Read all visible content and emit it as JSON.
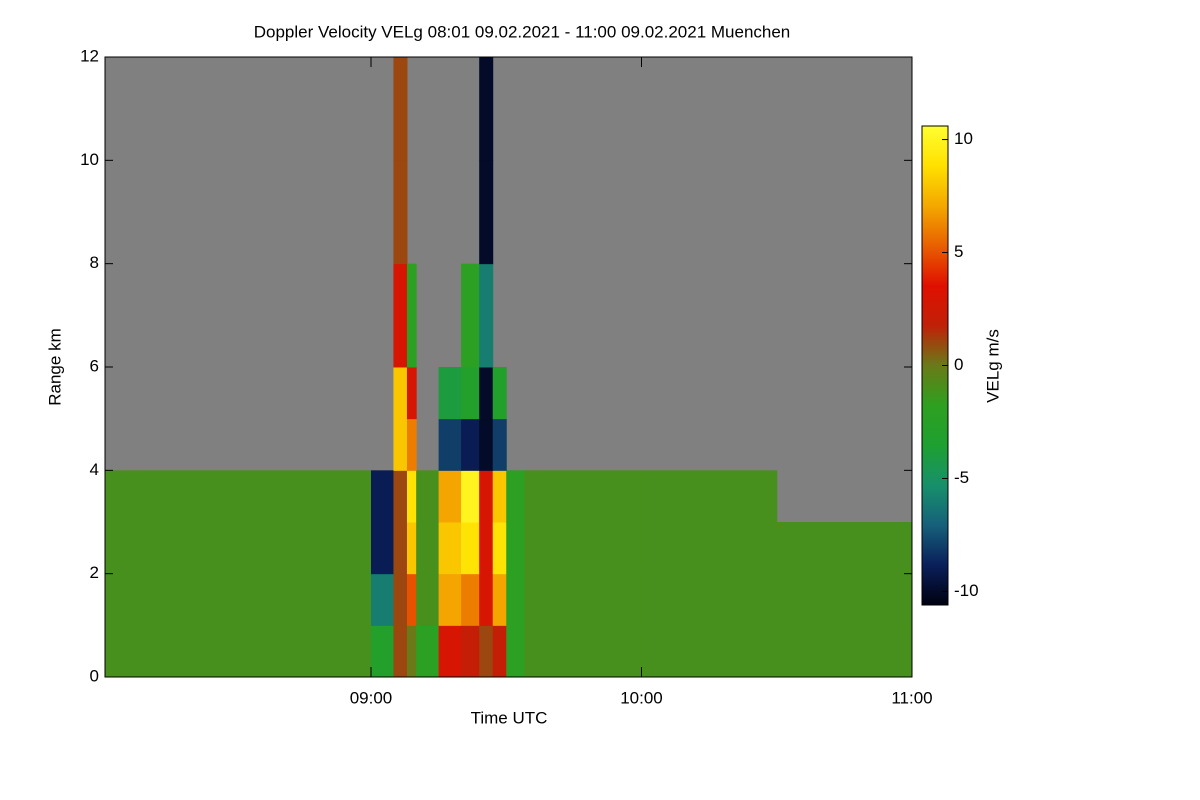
{
  "chart_data": {
    "type": "heatmap",
    "title": "Doppler Velocity VELg   08:01 09.02.2021 - 11:00 09.02.2021 Muenchen",
    "x_label": "Time UTC",
    "y_label": "Range km",
    "colorbar_label": "VELg m/s",
    "xlim": [
      8.0167,
      11.0
    ],
    "xticks": [
      {
        "value": 9,
        "label": "09:00"
      },
      {
        "value": 10,
        "label": "10:00"
      },
      {
        "value": 11,
        "label": "11:00"
      }
    ],
    "ylim": [
      0,
      12
    ],
    "yticks": [
      0,
      2,
      4,
      6,
      8,
      10,
      12
    ],
    "zlim": [
      -10.6,
      10.6
    ],
    "zticks": [
      -10,
      -5,
      0,
      5,
      10
    ],
    "colors": [
      "#000010",
      "#0a1f5a",
      "#16607a",
      "#17906a",
      "#1ea030",
      "#2ea020",
      "#6a7a18",
      "#c02008",
      "#e01000",
      "#e86000",
      "#f4a800",
      "#ffe000",
      "#ffff30"
    ],
    "missing_color": "#808080",
    "x_bins": [
      8.0167,
      8.5,
      8.833,
      9.0,
      9.083,
      9.133,
      9.167,
      9.25,
      9.333,
      9.4,
      9.45,
      9.5,
      9.567,
      10.0,
      10.5,
      11.0
    ],
    "y_bins": [
      0,
      1,
      2,
      3,
      4,
      5,
      6,
      8,
      10,
      12
    ],
    "values": [
      [
        -1,
        -1,
        -1,
        -3,
        1,
        0,
        -2,
        3,
        2,
        1,
        2,
        -2,
        -1,
        -1,
        -1
      ],
      [
        -1,
        -1,
        -1,
        -6,
        1,
        5,
        -1,
        7,
        6,
        3,
        7,
        -2,
        -1,
        -1,
        -1
      ],
      [
        -1,
        -1,
        -1,
        -9,
        1,
        8,
        -1,
        8,
        9,
        3,
        9,
        -2,
        -1,
        -1,
        -1
      ],
      [
        -1,
        -1,
        -1,
        -9,
        1,
        9,
        -1,
        7,
        10,
        3,
        8,
        -2,
        -1,
        -1,
        null
      ],
      [
        null,
        null,
        null,
        null,
        8,
        6,
        null,
        -8,
        -9,
        -10,
        -8,
        null,
        null,
        null,
        null
      ],
      [
        null,
        null,
        null,
        null,
        8,
        3,
        null,
        -4,
        -3,
        -10,
        -3,
        null,
        null,
        null,
        null
      ],
      [
        null,
        null,
        null,
        null,
        3,
        -2,
        null,
        null,
        -2,
        -6,
        null,
        null,
        null,
        null,
        null
      ],
      [
        null,
        null,
        null,
        null,
        1,
        null,
        null,
        null,
        null,
        -10,
        null,
        null,
        null,
        null,
        null
      ],
      [
        null,
        null,
        null,
        null,
        1,
        null,
        null,
        null,
        null,
        -10,
        null,
        null,
        null,
        null,
        null
      ]
    ]
  }
}
